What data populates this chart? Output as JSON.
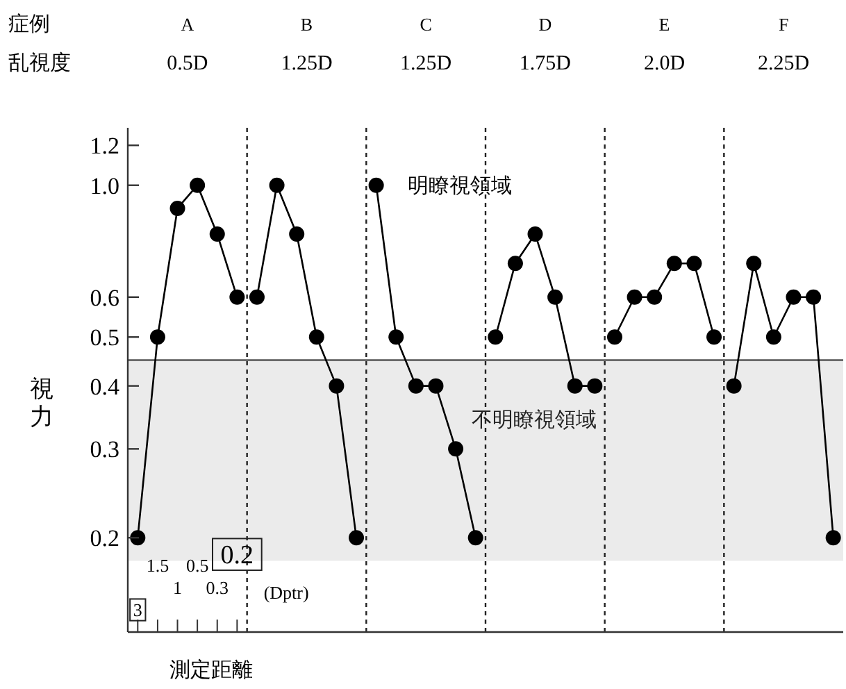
{
  "chart_data": {
    "type": "line",
    "ylabel": "視力",
    "xlabel": "測定距離",
    "annotations": [
      "症例",
      "A",
      "B",
      "C",
      "D",
      "E",
      "F",
      "乱視度",
      "0.5D",
      "1.25D",
      "1.25D",
      "1.75D",
      "2.0D",
      "2.25D",
      "(Dptr)",
      "明瞭視領域"
    ],
    "categories": [
      "3",
      "1.5",
      "1",
      "0.5",
      "0.3",
      "0.2",
      null,
      null,
      null,
      null,
      null,
      null,
      null,
      null,
      null,
      null,
      null,
      null,
      null,
      null,
      null,
      null,
      null,
      null,
      null,
      null,
      null,
      null,
      null,
      null,
      null,
      null,
      null,
      null,
      null,
      null
    ],
    "series": [
      {
        "color": "#000000",
        "values": [
          0.2,
          0.5,
          0.9,
          1.0,
          0.8,
          0.6,
          null,
          null,
          null,
          null,
          null,
          null,
          null,
          null,
          null,
          null,
          null,
          null,
          null,
          null,
          null,
          null,
          null,
          null,
          null,
          null,
          null,
          null,
          null,
          null,
          null,
          null,
          null,
          null,
          null,
          null
        ]
      },
      {
        "color": "#000000",
        "values": [
          null,
          null,
          null,
          null,
          null,
          null,
          0.6,
          1.0,
          0.8,
          0.5,
          0.4,
          0.2,
          null,
          null,
          null,
          null,
          null,
          null,
          null,
          null,
          null,
          null,
          null,
          null,
          null,
          null,
          null,
          null,
          null,
          null,
          null,
          null,
          null,
          null,
          null,
          null
        ]
      },
      {
        "color": "#000000",
        "values": [
          null,
          null,
          null,
          null,
          null,
          null,
          null,
          null,
          null,
          null,
          null,
          null,
          1.0,
          0.5,
          0.4,
          0.4,
          0.3,
          0.2,
          null,
          null,
          null,
          null,
          null,
          null,
          null,
          null,
          null,
          null,
          null,
          null,
          null,
          null,
          null,
          null,
          null,
          null
        ]
      },
      {
        "color": "#000000",
        "values": [
          null,
          null,
          null,
          null,
          null,
          null,
          null,
          null,
          null,
          null,
          null,
          null,
          null,
          null,
          null,
          null,
          null,
          null,
          0.5,
          0.7,
          0.8,
          0.6,
          0.4,
          0.4,
          null,
          null,
          null,
          null,
          null,
          null,
          null,
          null,
          null,
          null,
          null,
          null
        ]
      },
      {
        "color": "#000000",
        "values": [
          null,
          null,
          null,
          null,
          null,
          null,
          null,
          null,
          null,
          null,
          null,
          null,
          null,
          null,
          null,
          null,
          null,
          null,
          null,
          null,
          null,
          null,
          null,
          null,
          0.5,
          0.6,
          0.6,
          0.7,
          0.7,
          0.5,
          null,
          null,
          null,
          null,
          null,
          null
        ]
      },
      {
        "color": "#000000",
        "values": [
          null,
          null,
          null,
          null,
          null,
          null,
          null,
          null,
          null,
          null,
          null,
          null,
          null,
          null,
          null,
          null,
          null,
          null,
          null,
          null,
          null,
          null,
          null,
          null,
          null,
          null,
          null,
          null,
          null,
          null,
          0.4,
          0.7,
          0.5,
          0.6,
          0.6,
          0.2
        ]
      }
    ],
    "marker": "circle",
    "log": true,
    "ylim": [
      0.13,
      1.3
    ],
    "yticks": [
      0.2,
      0.3,
      0.4,
      0.5,
      0.6,
      {
        "value": 1.0,
        "label": "1.0"
      },
      1.2
    ],
    "ref_lines": [
      {
        "axis": "y",
        "value": 0.45
      }
    ],
    "bands": [
      {
        "axis": "y",
        "from": 0.18,
        "to": 0.45,
        "color": "#ebebeb",
        "label": "不明瞭視領域"
      }
    ]
  }
}
